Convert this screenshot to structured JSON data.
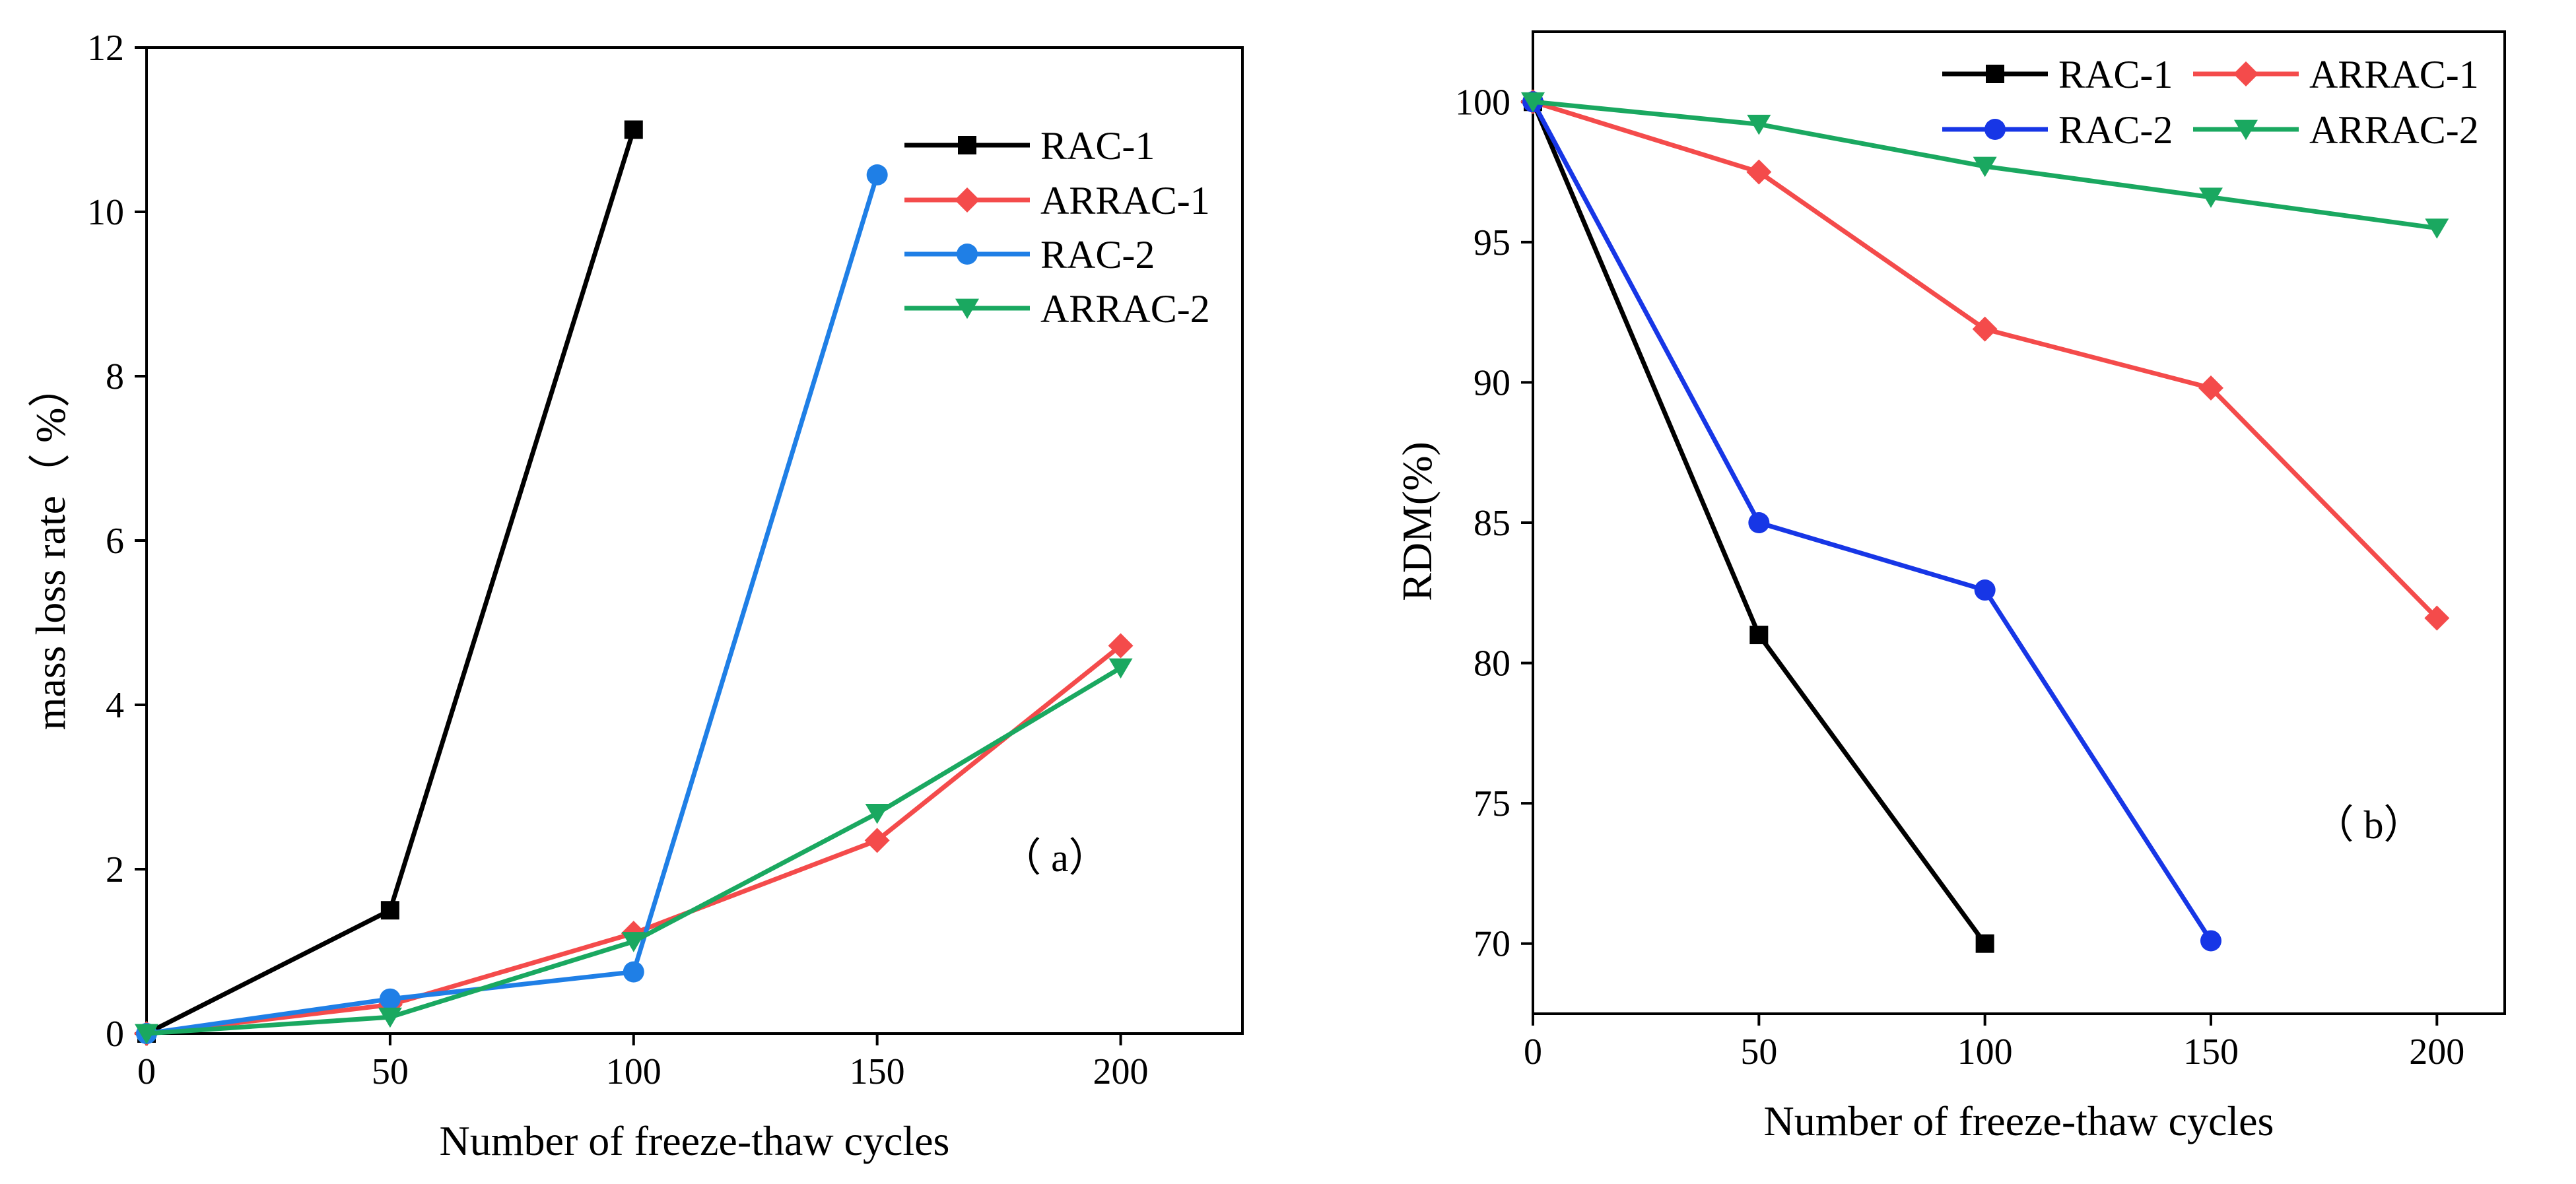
{
  "colors": {
    "RAC-1": "#000000",
    "ARRAC-1": "#f44b4b",
    "RAC-2-a": "#1f7fe6",
    "RAC-2-b": "#1736e6",
    "ARRAC-2": "#1aa860"
  },
  "chart_data": [
    {
      "type": "line",
      "panel_label": "（ a）",
      "title": "",
      "xlabel": "Number of freeze-thaw cycles",
      "ylabel": "mass loss rate（ %）",
      "xlim": [
        0,
        225
      ],
      "ylim": [
        0,
        12
      ],
      "xticks": [
        0,
        50,
        100,
        150,
        200
      ],
      "yticks": [
        0,
        2,
        4,
        6,
        8,
        10,
        12
      ],
      "legend_position": "top-right",
      "series": [
        {
          "name": "RAC-1",
          "marker": "square",
          "x": [
            0,
            50,
            100
          ],
          "values": [
            0,
            1.5,
            11.0
          ]
        },
        {
          "name": "ARRAC-1",
          "marker": "diamond",
          "x": [
            0,
            50,
            100,
            150,
            200
          ],
          "values": [
            0,
            0.35,
            1.22,
            2.35,
            4.72
          ]
        },
        {
          "name": "RAC-2",
          "marker": "circle",
          "x": [
            0,
            50,
            100,
            150
          ],
          "values": [
            0,
            0.42,
            0.75,
            10.45
          ]
        },
        {
          "name": "ARRAC-2",
          "marker": "triangle-down",
          "x": [
            0,
            50,
            100,
            150,
            200
          ],
          "values": [
            0,
            0.2,
            1.12,
            2.68,
            4.45
          ]
        }
      ]
    },
    {
      "type": "line",
      "panel_label": "（ b）",
      "title": "",
      "xlabel": "Number of freeze-thaw cycles",
      "ylabel": "RDM(%)",
      "xlim": [
        0,
        215
      ],
      "ylim": [
        67.5,
        102.5
      ],
      "xticks": [
        0,
        50,
        100,
        150,
        200
      ],
      "yticks": [
        70,
        75,
        80,
        85,
        90,
        95,
        100
      ],
      "legend_position": "top",
      "series": [
        {
          "name": "RAC-1",
          "marker": "square",
          "x": [
            0,
            50,
            100
          ],
          "values": [
            100,
            81.0,
            70.0
          ]
        },
        {
          "name": "ARRAC-1",
          "marker": "diamond",
          "x": [
            0,
            50,
            100,
            150,
            200
          ],
          "values": [
            100,
            97.5,
            91.9,
            89.8,
            81.6
          ]
        },
        {
          "name": "RAC-2",
          "marker": "circle",
          "x": [
            0,
            50,
            100,
            150
          ],
          "values": [
            100,
            85.0,
            82.6,
            70.1
          ]
        },
        {
          "name": "ARRAC-2",
          "marker": "triangle-down",
          "x": [
            0,
            50,
            100,
            150,
            200
          ],
          "values": [
            100,
            99.2,
            97.7,
            96.6,
            95.5
          ]
        }
      ]
    }
  ]
}
